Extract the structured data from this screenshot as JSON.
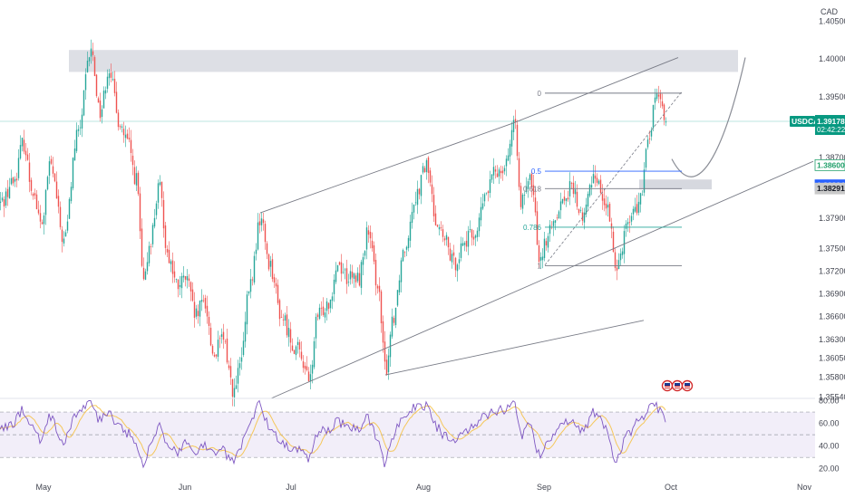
{
  "header": {
    "currency": "CAD"
  },
  "ticker": {
    "symbol": "USDCAD",
    "price": "1.39178",
    "countdown": "02:42:22"
  },
  "price_badges": [
    {
      "value": "1.38600",
      "bg": "#ffffff",
      "fg": "#22a06b",
      "border": "#22a06b"
    },
    {
      "value": "1.38334",
      "bg": "#2962ff",
      "fg": "#ffffff",
      "border": "#2962ff"
    },
    {
      "value": "1.38291",
      "bg": "#c9c9c9",
      "fg": "#131722",
      "border": "#c9c9c9"
    }
  ],
  "fib_labels": [
    {
      "text": "0",
      "level": 1.3955
    },
    {
      "text": "0.5",
      "level": 1.3852
    },
    {
      "text": "0.618",
      "level": 1.3829
    },
    {
      "text": "0.786",
      "level": 1.3778
    },
    {
      "text": "1",
      "level": 1.3727
    }
  ],
  "event_icons": [
    "flag-icon",
    "flag-icon",
    "flag-icon"
  ],
  "colors": {
    "up": "#26a69a",
    "down": "#ef5350",
    "trendline": "#787b86",
    "rsi_line": "#7e57c2",
    "rsi_ma": "#f5c75a",
    "rsi_band": "#ede7f6",
    "fib_blue": "#2962ff",
    "fib_green": "#26a69a",
    "ticker_bg": "#089981",
    "supply_zone": "#d1d4dc",
    "price_line": "#26a69a"
  },
  "chart_data": [
    {
      "type": "candlestick",
      "symbol": "USDCAD",
      "x_ticks": [
        "May",
        "Jun",
        "Jul",
        "Aug",
        "Sep",
        "Oct",
        "Nov"
      ],
      "y_ticks": [
        "1.40500",
        "1.40000",
        "1.39500",
        "1.38700",
        "1.38600",
        "1.37900",
        "1.37500",
        "1.37200",
        "1.36900",
        "1.36600",
        "1.36300",
        "1.36050",
        "1.35800",
        "1.35540"
      ],
      "y_range": [
        1.3552,
        1.4072
      ],
      "anchors": [
        [
          0,
          1.381
        ],
        [
          15,
          1.384
        ],
        [
          25,
          1.389
        ],
        [
          35,
          1.383
        ],
        [
          45,
          1.378
        ],
        [
          55,
          1.386
        ],
        [
          70,
          1.376
        ],
        [
          85,
          1.39
        ],
        [
          100,
          1.401
        ],
        [
          110,
          1.393
        ],
        [
          120,
          1.399
        ],
        [
          130,
          1.392
        ],
        [
          140,
          1.389
        ],
        [
          150,
          1.384
        ],
        [
          158,
          1.37
        ],
        [
          165,
          1.376
        ],
        [
          175,
          1.383
        ],
        [
          185,
          1.374
        ],
        [
          195,
          1.37
        ],
        [
          205,
          1.371
        ],
        [
          215,
          1.366
        ],
        [
          225,
          1.368
        ],
        [
          235,
          1.361
        ],
        [
          245,
          1.363
        ],
        [
          258,
          1.356
        ],
        [
          265,
          1.36
        ],
        [
          275,
          1.37
        ],
        [
          287,
          1.379
        ],
        [
          297,
          1.373
        ],
        [
          310,
          1.366
        ],
        [
          325,
          1.362
        ],
        [
          335,
          1.36
        ],
        [
          340,
          1.357
        ],
        [
          350,
          1.366
        ],
        [
          362,
          1.368
        ],
        [
          372,
          1.373
        ],
        [
          385,
          1.371
        ],
        [
          395,
          1.371
        ],
        [
          405,
          1.377
        ],
        [
          415,
          1.371
        ],
        [
          425,
          1.359
        ],
        [
          433,
          1.366
        ],
        [
          445,
          1.375
        ],
        [
          458,
          1.382
        ],
        [
          470,
          1.386
        ],
        [
          480,
          1.379
        ],
        [
          490,
          1.376
        ],
        [
          500,
          1.373
        ],
        [
          512,
          1.376
        ],
        [
          524,
          1.377
        ],
        [
          535,
          1.382
        ],
        [
          545,
          1.385
        ],
        [
          555,
          1.386
        ],
        [
          567,
          1.391
        ],
        [
          575,
          1.381
        ],
        [
          585,
          1.384
        ],
        [
          595,
          1.374
        ],
        [
          605,
          1.377
        ],
        [
          618,
          1.381
        ],
        [
          630,
          1.383
        ],
        [
          642,
          1.379
        ],
        [
          655,
          1.385
        ],
        [
          667,
          1.381
        ],
        [
          680,
          1.373
        ],
        [
          693,
          1.379
        ],
        [
          705,
          1.381
        ],
        [
          715,
          1.389
        ],
        [
          722,
          1.395
        ],
        [
          728,
          1.394
        ],
        [
          734,
          1.392
        ]
      ],
      "projection": [
        [
          741,
          1.3868
        ],
        [
          775,
          1.3838
        ],
        [
          808,
          1.3925
        ],
        [
          822,
          1.4002
        ]
      ],
      "supply_zone": {
        "from": 1.4012,
        "to": 1.3983
      },
      "demand_zone": {
        "from": 1.3841,
        "to": 1.3828
      },
      "trendlines": [
        [
          [
            287,
            1.3797
          ],
          [
            565,
            1.3915
          ]
        ],
        [
          [
            565,
            1.3915
          ],
          [
            748,
            1.4002
          ]
        ],
        [
          [
            299,
            1.3552
          ],
          [
            897,
            1.3865
          ]
        ],
        [
          [
            425,
            1.3583
          ],
          [
            710,
            1.3655
          ]
        ]
      ],
      "fib_dashed": [
        [
          601,
          1.3728
        ],
        [
          752,
          1.3957
        ]
      ]
    },
    {
      "type": "line",
      "name": "RSI",
      "y_ticks": [
        "80.00",
        "60.00",
        "40.00",
        "20.00"
      ],
      "y_range": [
        15,
        82
      ],
      "band": [
        30,
        70
      ],
      "mid": 50,
      "anchors": [
        [
          0,
          55
        ],
        [
          15,
          60
        ],
        [
          25,
          72
        ],
        [
          35,
          55
        ],
        [
          45,
          45
        ],
        [
          55,
          65
        ],
        [
          70,
          44
        ],
        [
          85,
          70
        ],
        [
          100,
          78
        ],
        [
          110,
          62
        ],
        [
          120,
          72
        ],
        [
          130,
          58
        ],
        [
          140,
          52
        ],
        [
          150,
          40
        ],
        [
          158,
          22
        ],
        [
          165,
          40
        ],
        [
          175,
          58
        ],
        [
          185,
          40
        ],
        [
          195,
          35
        ],
        [
          205,
          42
        ],
        [
          215,
          35
        ],
        [
          225,
          42
        ],
        [
          235,
          32
        ],
        [
          245,
          36
        ],
        [
          258,
          25
        ],
        [
          265,
          40
        ],
        [
          275,
          62
        ],
        [
          287,
          76
        ],
        [
          297,
          58
        ],
        [
          310,
          42
        ],
        [
          325,
          37
        ],
        [
          335,
          35
        ],
        [
          340,
          30
        ],
        [
          350,
          52
        ],
        [
          362,
          55
        ],
        [
          372,
          62
        ],
        [
          385,
          55
        ],
        [
          395,
          56
        ],
        [
          405,
          65
        ],
        [
          415,
          50
        ],
        [
          425,
          24
        ],
        [
          433,
          50
        ],
        [
          445,
          66
        ],
        [
          458,
          75
        ],
        [
          470,
          76
        ],
        [
          480,
          58
        ],
        [
          490,
          50
        ],
        [
          500,
          42
        ],
        [
          512,
          52
        ],
        [
          524,
          58
        ],
        [
          535,
          66
        ],
        [
          545,
          70
        ],
        [
          555,
          72
        ],
        [
          567,
          78
        ],
        [
          575,
          50
        ],
        [
          585,
          58
        ],
        [
          595,
          32
        ],
        [
          605,
          42
        ],
        [
          618,
          58
        ],
        [
          630,
          62
        ],
        [
          642,
          52
        ],
        [
          655,
          70
        ],
        [
          667,
          58
        ],
        [
          680,
          28
        ],
        [
          693,
          52
        ],
        [
          705,
          62
        ],
        [
          715,
          72
        ],
        [
          722,
          76
        ],
        [
          728,
          72
        ],
        [
          734,
          60
        ]
      ]
    }
  ]
}
